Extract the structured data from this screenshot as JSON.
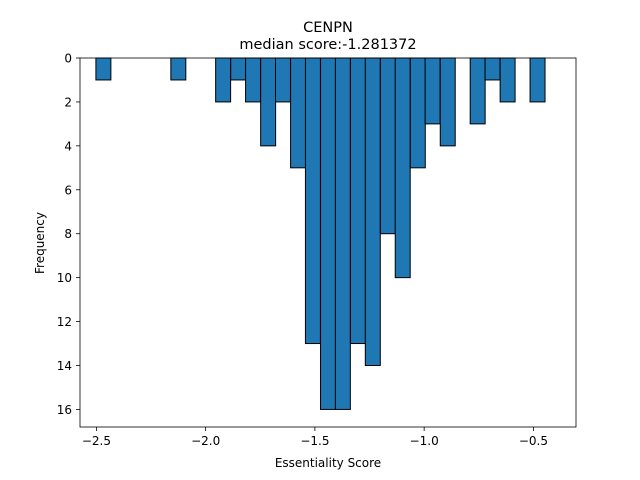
{
  "chart_data": {
    "type": "bar",
    "title": "CENPN",
    "subtitle": "median score:-1.281372",
    "xlabel": "Essentiality Score",
    "ylabel": "Frequency",
    "xlim": [
      -2.575,
      -0.305
    ],
    "ylim": [
      16.8,
      0
    ],
    "y_inverted": true,
    "grid": false,
    "bar_color": "#1f77b4",
    "edge_color": "#000000",
    "bin_width": 0.0685,
    "x_ticks": [
      -2.5,
      -2.0,
      -1.5,
      -1.0,
      -0.5
    ],
    "x_tick_labels": [
      "−2.5",
      "−2.0",
      "−1.5",
      "−1.0",
      "−0.5"
    ],
    "y_ticks": [
      0,
      2,
      4,
      6,
      8,
      10,
      12,
      14,
      16
    ],
    "y_tick_labels": [
      "0",
      "2",
      "4",
      "6",
      "8",
      "10",
      "12",
      "14",
      "16"
    ],
    "bins": [
      {
        "x": -2.468,
        "count": 1
      },
      {
        "x": -2.125,
        "count": 1
      },
      {
        "x": -1.92,
        "count": 2
      },
      {
        "x": -1.851,
        "count": 1
      },
      {
        "x": -1.783,
        "count": 2
      },
      {
        "x": -1.714,
        "count": 4
      },
      {
        "x": -1.646,
        "count": 2
      },
      {
        "x": -1.577,
        "count": 5
      },
      {
        "x": -1.509,
        "count": 13
      },
      {
        "x": -1.44,
        "count": 16
      },
      {
        "x": -1.372,
        "count": 16
      },
      {
        "x": -1.303,
        "count": 13
      },
      {
        "x": -1.235,
        "count": 14
      },
      {
        "x": -1.166,
        "count": 8
      },
      {
        "x": -1.098,
        "count": 10
      },
      {
        "x": -1.029,
        "count": 5
      },
      {
        "x": -0.961,
        "count": 3
      },
      {
        "x": -0.892,
        "count": 4
      },
      {
        "x": -0.755,
        "count": 3
      },
      {
        "x": -0.687,
        "count": 1
      },
      {
        "x": -0.618,
        "count": 2
      },
      {
        "x": -0.481,
        "count": 2
      }
    ]
  }
}
